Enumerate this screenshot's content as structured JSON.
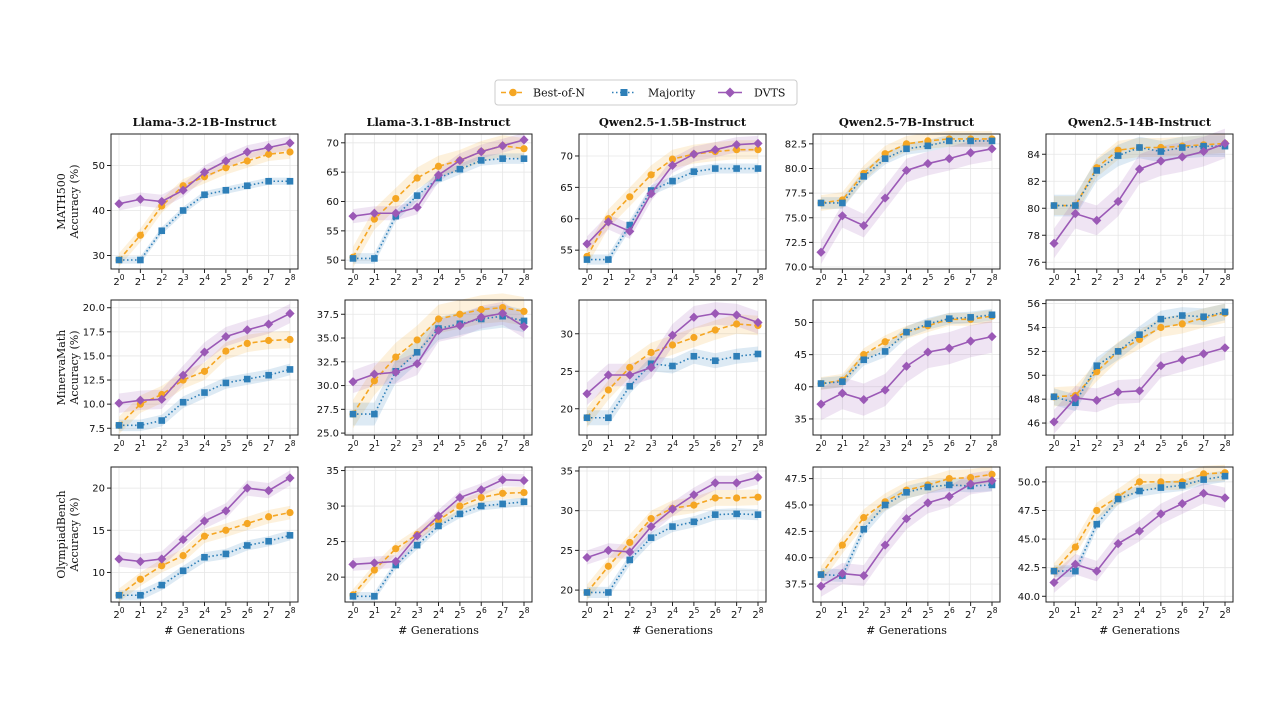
{
  "legend": {
    "entries": [
      {
        "name": "Best-of-N",
        "color": "#f5a623",
        "marker": "circle",
        "dash": "dashed"
      },
      {
        "name": "Majority",
        "color": "#2e7fb8",
        "marker": "square",
        "dash": "dotted"
      },
      {
        "name": "DVTS",
        "color": "#9b59b6",
        "marker": "diamond",
        "dash": "solid"
      }
    ]
  },
  "columns": [
    "Llama-3.2-1B-Instruct",
    "Llama-3.1-8B-Instruct",
    "Qwen2.5-1.5B-Instruct",
    "Qwen2.5-7B-Instruct",
    "Qwen2.5-14B-Instruct"
  ],
  "row_labels": [
    [
      "MATH500",
      "Accuracy (%)"
    ],
    [
      "MinervaMath",
      "Accuracy (%)"
    ],
    [
      "OlympiadBench",
      "Accuracy (%)"
    ]
  ],
  "xlabel": "# Generations",
  "x_tick_labels": [
    "2^0",
    "2^1",
    "2^2",
    "2^3",
    "2^4",
    "2^5",
    "2^6",
    "2^7",
    "2^8"
  ],
  "chart_data": [
    {
      "type": "line",
      "row": 0,
      "col": 0,
      "title": "Llama-3.2-1B-Instruct",
      "ylabel": "MATH500 Accuracy (%)",
      "ylim": [
        27,
        57
      ],
      "yticks": [
        30,
        40,
        50
      ],
      "x": [
        1,
        2,
        4,
        8,
        16,
        32,
        64,
        128,
        256
      ],
      "series": [
        {
          "name": "Best-of-N",
          "values": [
            29,
            34.5,
            41,
            45.5,
            47.5,
            49.5,
            51,
            52.5,
            53
          ],
          "band": 1.5
        },
        {
          "name": "Majority",
          "values": [
            29,
            29,
            35.5,
            40,
            43.5,
            44.5,
            45.5,
            46.5,
            46.5
          ],
          "band": 0.8
        },
        {
          "name": "DVTS",
          "values": [
            41.5,
            42.5,
            42,
            44.5,
            48.5,
            51,
            53,
            54,
            55
          ],
          "band": 1.5
        }
      ]
    },
    {
      "type": "line",
      "row": 0,
      "col": 1,
      "title": "Llama-3.1-8B-Instruct",
      "ylabel": "",
      "ylim": [
        48.5,
        71.5
      ],
      "yticks": [
        50,
        55,
        60,
        65,
        70
      ],
      "x": [
        1,
        2,
        4,
        8,
        16,
        32,
        64,
        128,
        256
      ],
      "series": [
        {
          "name": "Best-of-N",
          "values": [
            50.5,
            57,
            60.5,
            64,
            66,
            67,
            68.5,
            69.5,
            69
          ],
          "band": 1.8
        },
        {
          "name": "Majority",
          "values": [
            50.3,
            50.3,
            57.5,
            61,
            64,
            65.5,
            67,
            67.3,
            67.3
          ],
          "band": 0.9
        },
        {
          "name": "DVTS",
          "values": [
            57.5,
            58,
            58,
            59,
            64.5,
            67,
            68.5,
            69.5,
            70.5
          ],
          "band": 1.2
        }
      ]
    },
    {
      "type": "line",
      "row": 0,
      "col": 2,
      "title": "Qwen2.5-1.5B-Instruct",
      "ylabel": "",
      "ylim": [
        52,
        73.5
      ],
      "yticks": [
        55,
        60,
        65,
        70
      ],
      "x": [
        1,
        2,
        4,
        8,
        16,
        32,
        64,
        128,
        256
      ],
      "series": [
        {
          "name": "Best-of-N",
          "values": [
            54,
            60,
            63.5,
            67,
            69.5,
            70.3,
            70.7,
            71,
            71
          ],
          "band": 1.5
        },
        {
          "name": "Majority",
          "values": [
            53.5,
            53.5,
            59,
            64.5,
            66,
            67.5,
            68,
            68,
            68
          ],
          "band": 0.8
        },
        {
          "name": "DVTS",
          "values": [
            56,
            59.5,
            58,
            64,
            68.5,
            70.3,
            71,
            71.8,
            72
          ],
          "band": 1.2
        }
      ]
    },
    {
      "type": "line",
      "row": 0,
      "col": 3,
      "title": "Qwen2.5-7B-Instruct",
      "ylabel": "",
      "ylim": [
        69.8,
        83.5
      ],
      "yticks": [
        70.0,
        72.5,
        75.0,
        77.5,
        80.0,
        82.5
      ],
      "x": [
        1,
        2,
        4,
        8,
        16,
        32,
        64,
        128,
        256
      ],
      "series": [
        {
          "name": "Best-of-N",
          "values": [
            76.5,
            76.8,
            79.5,
            81.5,
            82.5,
            82.8,
            83,
            83,
            83
          ],
          "band": 0.8
        },
        {
          "name": "Majority",
          "values": [
            76.5,
            76.5,
            79.2,
            81,
            82,
            82.3,
            82.8,
            82.8,
            82.8
          ],
          "band": 0.6
        },
        {
          "name": "DVTS",
          "values": [
            71.5,
            75.2,
            74.2,
            77,
            79.8,
            80.5,
            81,
            81.6,
            82
          ],
          "band": 1.2
        }
      ]
    },
    {
      "type": "line",
      "row": 0,
      "col": 4,
      "title": "Qwen2.5-14B-Instruct",
      "ylabel": "",
      "ylim": [
        75.5,
        85.5
      ],
      "yticks": [
        76,
        78,
        80,
        82,
        84
      ],
      "x": [
        1,
        2,
        4,
        8,
        16,
        32,
        64,
        128,
        256
      ],
      "series": [
        {
          "name": "Best-of-N",
          "values": [
            80.2,
            80.2,
            83,
            84.3,
            84.5,
            84.5,
            84.6,
            84.7,
            84.8
          ],
          "band": 0.7
        },
        {
          "name": "Majority",
          "values": [
            80.2,
            80.2,
            82.8,
            83.9,
            84.5,
            84.2,
            84.5,
            84.6,
            84.6
          ],
          "band": 0.8
        },
        {
          "name": "DVTS",
          "values": [
            77.4,
            79.6,
            79.1,
            80.5,
            82.9,
            83.5,
            83.8,
            84.2,
            84.8
          ],
          "band": 1.1
        }
      ]
    },
    {
      "type": "line",
      "row": 1,
      "col": 0,
      "title": "",
      "ylabel": "MinervaMath Accuracy (%)",
      "ylim": [
        6.8,
        20.8
      ],
      "yticks": [
        7.5,
        10.0,
        12.5,
        15.0,
        17.5,
        20.0
      ],
      "x": [
        1,
        2,
        4,
        8,
        16,
        32,
        64,
        128,
        256
      ],
      "series": [
        {
          "name": "Best-of-N",
          "values": [
            7.8,
            10,
            11,
            12.5,
            13.4,
            15.5,
            16.3,
            16.6,
            16.7
          ],
          "band": 0.9
        },
        {
          "name": "Majority",
          "values": [
            7.8,
            7.8,
            8.3,
            10.2,
            11.2,
            12.2,
            12.6,
            13,
            13.6
          ],
          "band": 0.6
        },
        {
          "name": "DVTS",
          "values": [
            10.1,
            10.4,
            10.5,
            13,
            15.4,
            17,
            17.7,
            18.3,
            19.4
          ],
          "band": 1.0
        }
      ]
    },
    {
      "type": "line",
      "row": 1,
      "col": 1,
      "title": "",
      "ylabel": "",
      "ylim": [
        24.8,
        39
      ],
      "yticks": [
        25.0,
        27.5,
        30.0,
        32.5,
        35.0,
        37.5
      ],
      "x": [
        1,
        2,
        4,
        8,
        16,
        32,
        64,
        128,
        256
      ],
      "series": [
        {
          "name": "Best-of-N",
          "values": [
            27,
            30.5,
            33,
            34.8,
            37,
            37.5,
            38,
            38.2,
            37.8
          ],
          "band": 1.5
        },
        {
          "name": "Majority",
          "values": [
            27,
            27,
            31.5,
            33.5,
            36,
            36.5,
            37,
            37.3,
            36.8
          ],
          "band": 1.2
        },
        {
          "name": "DVTS",
          "values": [
            30.4,
            31.2,
            31.4,
            32.3,
            35.8,
            36.3,
            37.2,
            37.6,
            36.2
          ],
          "band": 1.2
        }
      ]
    },
    {
      "type": "line",
      "row": 1,
      "col": 2,
      "title": "",
      "ylabel": "",
      "ylim": [
        16.5,
        34.5
      ],
      "yticks": [
        20,
        25,
        30
      ],
      "x": [
        1,
        2,
        4,
        8,
        16,
        32,
        64,
        128,
        256
      ],
      "series": [
        {
          "name": "Best-of-N",
          "values": [
            18.8,
            22.5,
            25.5,
            27.5,
            28.5,
            29.5,
            30.5,
            31.3,
            31.1
          ],
          "band": 1.3
        },
        {
          "name": "Majority",
          "values": [
            18.8,
            18.8,
            23,
            26,
            25.7,
            27,
            26.4,
            27,
            27.3
          ],
          "band": 1.0
        },
        {
          "name": "DVTS",
          "values": [
            22,
            24.5,
            24.5,
            25.5,
            29.8,
            32.2,
            32.7,
            32.5,
            31.5
          ],
          "band": 1.5
        }
      ]
    },
    {
      "type": "line",
      "row": 1,
      "col": 3,
      "title": "",
      "ylabel": "",
      "ylim": [
        32.5,
        53.5
      ],
      "yticks": [
        35,
        40,
        45,
        50
      ],
      "x": [
        1,
        2,
        4,
        8,
        16,
        32,
        64,
        128,
        256
      ],
      "series": [
        {
          "name": "Best-of-N",
          "values": [
            40.5,
            41,
            45,
            47,
            48.5,
            49.5,
            50.5,
            50.5,
            51
          ],
          "band": 1.0
        },
        {
          "name": "Majority",
          "values": [
            40.5,
            40.8,
            44.2,
            45.5,
            48.5,
            49.8,
            50.6,
            50.8,
            51.2
          ],
          "band": 0.9
        },
        {
          "name": "DVTS",
          "values": [
            37.3,
            39,
            38,
            39.5,
            43.2,
            45.4,
            46,
            47.1,
            47.8
          ],
          "band": 2.5
        }
      ]
    },
    {
      "type": "line",
      "row": 1,
      "col": 4,
      "title": "",
      "ylabel": "",
      "ylim": [
        45,
        56.3
      ],
      "yticks": [
        46,
        48,
        50,
        52,
        54,
        56
      ],
      "x": [
        1,
        2,
        4,
        8,
        16,
        32,
        64,
        128,
        256
      ],
      "series": [
        {
          "name": "Best-of-N",
          "values": [
            48.2,
            48.3,
            50.3,
            52,
            53,
            54,
            54.3,
            54.8,
            55.2
          ],
          "band": 0.8
        },
        {
          "name": "Majority",
          "values": [
            48.2,
            47.7,
            50.8,
            52,
            53.4,
            54.7,
            55,
            54.9,
            55.3
          ],
          "band": 0.7
        },
        {
          "name": "DVTS",
          "values": [
            46.1,
            48.1,
            47.9,
            48.6,
            48.7,
            50.8,
            51.3,
            51.8,
            52.3
          ],
          "band": 1.0
        }
      ]
    },
    {
      "type": "line",
      "row": 2,
      "col": 0,
      "title": "",
      "ylabel": "OlympiadBench Accuracy (%)",
      "ylim": [
        6.5,
        22.5
      ],
      "yticks": [
        10,
        15,
        20
      ],
      "x": [
        1,
        2,
        4,
        8,
        16,
        32,
        64,
        128,
        256
      ],
      "series": [
        {
          "name": "Best-of-N",
          "values": [
            7.3,
            9.2,
            10.8,
            12,
            14.3,
            15,
            15.8,
            16.6,
            17.1
          ],
          "band": 0.8
        },
        {
          "name": "Majority",
          "values": [
            7.3,
            7.3,
            8.5,
            10.2,
            11.8,
            12.2,
            13.2,
            13.7,
            14.4
          ],
          "band": 0.6
        },
        {
          "name": "DVTS",
          "values": [
            11.6,
            11.3,
            11.6,
            13.9,
            16.1,
            17.3,
            20,
            19.7,
            21.2
          ],
          "band": 0.9
        }
      ]
    },
    {
      "type": "line",
      "row": 2,
      "col": 1,
      "title": "",
      "ylabel": "",
      "ylim": [
        16.5,
        35.5
      ],
      "yticks": [
        20,
        25,
        30,
        35
      ],
      "x": [
        1,
        2,
        4,
        8,
        16,
        32,
        64,
        128,
        256
      ],
      "series": [
        {
          "name": "Best-of-N",
          "values": [
            17.5,
            21,
            24,
            26,
            28,
            30,
            31.2,
            31.8,
            31.9
          ],
          "band": 0.8
        },
        {
          "name": "Majority",
          "values": [
            17.3,
            17.3,
            21.7,
            24.5,
            27.2,
            28.9,
            30,
            30.3,
            30.6
          ],
          "band": 0.6
        },
        {
          "name": "DVTS",
          "values": [
            21.8,
            22,
            22.2,
            25.8,
            28.6,
            31.2,
            32.3,
            33.7,
            33.6
          ],
          "band": 0.9
        }
      ]
    },
    {
      "type": "line",
      "row": 2,
      "col": 2,
      "title": "",
      "ylabel": "",
      "ylim": [
        18.5,
        35.5
      ],
      "yticks": [
        20,
        25,
        30,
        35
      ],
      "x": [
        1,
        2,
        4,
        8,
        16,
        32,
        64,
        128,
        256
      ],
      "series": [
        {
          "name": "Best-of-N",
          "values": [
            19.7,
            23,
            26,
            29,
            30.3,
            30.7,
            31.6,
            31.6,
            31.7
          ],
          "band": 1.0
        },
        {
          "name": "Majority",
          "values": [
            19.7,
            19.7,
            23.8,
            26.6,
            28,
            28.6,
            29.5,
            29.6,
            29.5
          ],
          "band": 0.7
        },
        {
          "name": "DVTS",
          "values": [
            24.1,
            25,
            24.8,
            28,
            30.2,
            32,
            33.5,
            33.5,
            34.2
          ],
          "band": 0.9
        }
      ]
    },
    {
      "type": "line",
      "row": 2,
      "col": 3,
      "title": "",
      "ylabel": "",
      "ylim": [
        35.8,
        48.6
      ],
      "yticks": [
        37.5,
        40.0,
        42.5,
        45.0,
        47.5
      ],
      "x": [
        1,
        2,
        4,
        8,
        16,
        32,
        64,
        128,
        256
      ],
      "series": [
        {
          "name": "Best-of-N",
          "values": [
            38.4,
            41.2,
            43.8,
            45.3,
            46.4,
            46.9,
            47.5,
            47.6,
            47.9
          ],
          "band": 0.8
        },
        {
          "name": "Majority",
          "values": [
            38.4,
            38.3,
            42.7,
            45,
            46.2,
            46.7,
            46.9,
            46.8,
            46.9
          ],
          "band": 0.6
        },
        {
          "name": "DVTS",
          "values": [
            37.3,
            38.5,
            38.3,
            41.2,
            43.7,
            45.2,
            45.8,
            47,
            47.3
          ],
          "band": 1.0
        }
      ]
    },
    {
      "type": "line",
      "row": 2,
      "col": 4,
      "title": "",
      "ylabel": "",
      "ylim": [
        39.5,
        51.3
      ],
      "yticks": [
        40.0,
        42.5,
        45.0,
        47.5,
        50.0
      ],
      "x": [
        1,
        2,
        4,
        8,
        16,
        32,
        64,
        128,
        256
      ],
      "series": [
        {
          "name": "Best-of-N",
          "values": [
            42.2,
            44.3,
            47.5,
            48.7,
            50,
            50,
            50,
            50.7,
            50.8
          ],
          "band": 0.7
        },
        {
          "name": "Majority",
          "values": [
            42.2,
            42.2,
            46.3,
            48.5,
            49.2,
            49.5,
            49.7,
            50.2,
            50.5
          ],
          "band": 0.5
        },
        {
          "name": "DVTS",
          "values": [
            41.2,
            42.8,
            42.2,
            44.6,
            45.7,
            47.2,
            48.1,
            49,
            48.6
          ],
          "band": 0.9
        }
      ]
    }
  ]
}
